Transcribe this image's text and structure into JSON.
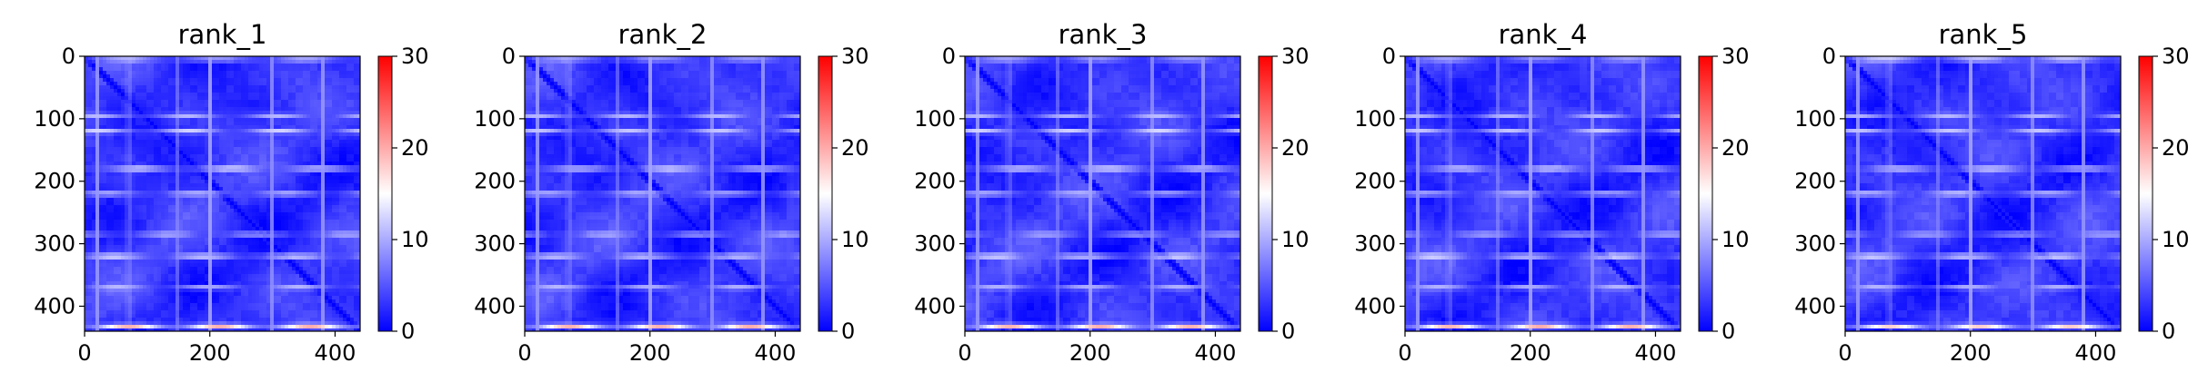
{
  "chart_data": [
    {
      "type": "heatmap",
      "title": "rank_1",
      "x_ticks": [
        "0",
        "200",
        "400"
      ],
      "y_ticks": [
        "0",
        "100",
        "200",
        "300",
        "400"
      ],
      "xlim": [
        0,
        440
      ],
      "ylim": [
        0,
        440
      ],
      "y_inverted": true,
      "colorbar": {
        "range": [
          0,
          30
        ],
        "ticks": [
          "0",
          "10",
          "20",
          "30"
        ],
        "colormap": "bwr"
      },
      "diagonal_value": 0,
      "bright_rows": [
        {
          "y": 5,
          "value": 13
        },
        {
          "y": 95,
          "value": 12
        },
        {
          "y": 120,
          "value": 14
        },
        {
          "y": 180,
          "value": 16
        },
        {
          "y": 220,
          "value": 13
        },
        {
          "y": 285,
          "value": 12
        },
        {
          "y": 320,
          "value": 16
        },
        {
          "y": 370,
          "value": 12
        },
        {
          "y": 432,
          "value": 22
        }
      ],
      "bright_cols": [
        {
          "x": 20,
          "value": 11
        },
        {
          "x": 70,
          "value": 12
        },
        {
          "x": 150,
          "value": 11
        },
        {
          "x": 200,
          "value": 12
        },
        {
          "x": 300,
          "value": 11
        },
        {
          "x": 380,
          "value": 11
        }
      ]
    },
    {
      "type": "heatmap",
      "title": "rank_2",
      "x_ticks": [
        "0",
        "200",
        "400"
      ],
      "y_ticks": [
        "0",
        "100",
        "200",
        "300",
        "400"
      ],
      "xlim": [
        0,
        440
      ],
      "ylim": [
        0,
        440
      ],
      "y_inverted": true,
      "colorbar": {
        "range": [
          0,
          30
        ],
        "ticks": [
          "0",
          "10",
          "20",
          "30"
        ],
        "colormap": "bwr"
      },
      "diagonal_value": 0,
      "bright_rows": [
        {
          "y": 5,
          "value": 12
        },
        {
          "y": 95,
          "value": 12
        },
        {
          "y": 120,
          "value": 13
        },
        {
          "y": 180,
          "value": 15
        },
        {
          "y": 220,
          "value": 13
        },
        {
          "y": 285,
          "value": 12
        },
        {
          "y": 320,
          "value": 15
        },
        {
          "y": 370,
          "value": 12
        },
        {
          "y": 432,
          "value": 22
        }
      ],
      "bright_cols": [
        {
          "x": 20,
          "value": 11
        },
        {
          "x": 70,
          "value": 12
        },
        {
          "x": 150,
          "value": 11
        },
        {
          "x": 200,
          "value": 12
        },
        {
          "x": 300,
          "value": 11
        },
        {
          "x": 380,
          "value": 11
        }
      ]
    },
    {
      "type": "heatmap",
      "title": "rank_3",
      "x_ticks": [
        "0",
        "200",
        "400"
      ],
      "y_ticks": [
        "0",
        "100",
        "200",
        "300",
        "400"
      ],
      "xlim": [
        0,
        440
      ],
      "ylim": [
        0,
        440
      ],
      "y_inverted": true,
      "colorbar": {
        "range": [
          0,
          30
        ],
        "ticks": [
          "0",
          "10",
          "20",
          "30"
        ],
        "colormap": "bwr"
      },
      "diagonal_value": 0,
      "bright_rows": [
        {
          "y": 5,
          "value": 12
        },
        {
          "y": 95,
          "value": 12
        },
        {
          "y": 120,
          "value": 14
        },
        {
          "y": 180,
          "value": 16
        },
        {
          "y": 220,
          "value": 13
        },
        {
          "y": 285,
          "value": 12
        },
        {
          "y": 320,
          "value": 16
        },
        {
          "y": 370,
          "value": 12
        },
        {
          "y": 432,
          "value": 22
        }
      ],
      "bright_cols": [
        {
          "x": 20,
          "value": 11
        },
        {
          "x": 70,
          "value": 12
        },
        {
          "x": 150,
          "value": 11
        },
        {
          "x": 200,
          "value": 12
        },
        {
          "x": 300,
          "value": 11
        },
        {
          "x": 380,
          "value": 11
        }
      ]
    },
    {
      "type": "heatmap",
      "title": "rank_4",
      "x_ticks": [
        "0",
        "200",
        "400"
      ],
      "y_ticks": [
        "0",
        "100",
        "200",
        "300",
        "400"
      ],
      "xlim": [
        0,
        440
      ],
      "ylim": [
        0,
        440
      ],
      "y_inverted": true,
      "colorbar": {
        "range": [
          0,
          30
        ],
        "ticks": [
          "0",
          "10",
          "20",
          "30"
        ],
        "colormap": "bwr"
      },
      "diagonal_value": 0,
      "bright_rows": [
        {
          "y": 5,
          "value": 12
        },
        {
          "y": 95,
          "value": 12
        },
        {
          "y": 120,
          "value": 13
        },
        {
          "y": 180,
          "value": 15
        },
        {
          "y": 220,
          "value": 13
        },
        {
          "y": 285,
          "value": 12
        },
        {
          "y": 320,
          "value": 16
        },
        {
          "y": 370,
          "value": 12
        },
        {
          "y": 432,
          "value": 22
        }
      ],
      "bright_cols": [
        {
          "x": 20,
          "value": 11
        },
        {
          "x": 70,
          "value": 12
        },
        {
          "x": 150,
          "value": 11
        },
        {
          "x": 200,
          "value": 12
        },
        {
          "x": 300,
          "value": 11
        },
        {
          "x": 380,
          "value": 11
        }
      ]
    },
    {
      "type": "heatmap",
      "title": "rank_5",
      "x_ticks": [
        "0",
        "200",
        "400"
      ],
      "y_ticks": [
        "0",
        "100",
        "200",
        "300",
        "400"
      ],
      "xlim": [
        0,
        440
      ],
      "ylim": [
        0,
        440
      ],
      "y_inverted": true,
      "colorbar": {
        "range": [
          0,
          30
        ],
        "ticks": [
          "0",
          "10",
          "20",
          "30"
        ],
        "colormap": "bwr"
      },
      "diagonal_value": 0,
      "bright_rows": [
        {
          "y": 5,
          "value": 16
        },
        {
          "y": 95,
          "value": 12
        },
        {
          "y": 120,
          "value": 13
        },
        {
          "y": 180,
          "value": 15
        },
        {
          "y": 220,
          "value": 14
        },
        {
          "y": 285,
          "value": 12
        },
        {
          "y": 320,
          "value": 16
        },
        {
          "y": 370,
          "value": 12
        },
        {
          "y": 432,
          "value": 20
        }
      ],
      "bright_cols": [
        {
          "x": 20,
          "value": 11
        },
        {
          "x": 70,
          "value": 12
        },
        {
          "x": 150,
          "value": 11
        },
        {
          "x": 200,
          "value": 12
        },
        {
          "x": 300,
          "value": 11
        },
        {
          "x": 380,
          "value": 11
        }
      ]
    }
  ]
}
